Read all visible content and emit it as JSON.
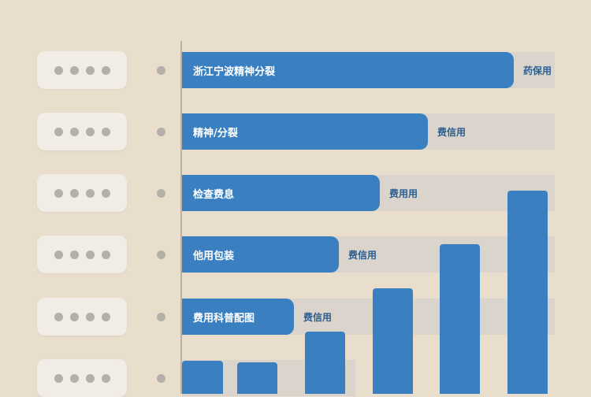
{
  "chart_data": {
    "type": "bar",
    "orientation": "horizontal",
    "categories": [
      "浙江宁波精神分裂",
      "精神/分裂",
      "检查费息",
      "他用包装",
      "费用科普配图"
    ],
    "value_labels": [
      "药保用",
      "费信用",
      "费用用",
      "费信用",
      "费信用"
    ],
    "values_percent_of_track": [
      89,
      66,
      53,
      42,
      30
    ],
    "secondary_columns_relative": [
      42,
      40,
      79,
      134,
      190,
      258
    ],
    "colors": {
      "bar": "#3a80c1",
      "track": "#dad4cc",
      "background": "#e9ddcc",
      "label": "#2c5e90"
    },
    "grid": false,
    "legend": "none"
  },
  "row_placeholder_icon": "dots-icon"
}
